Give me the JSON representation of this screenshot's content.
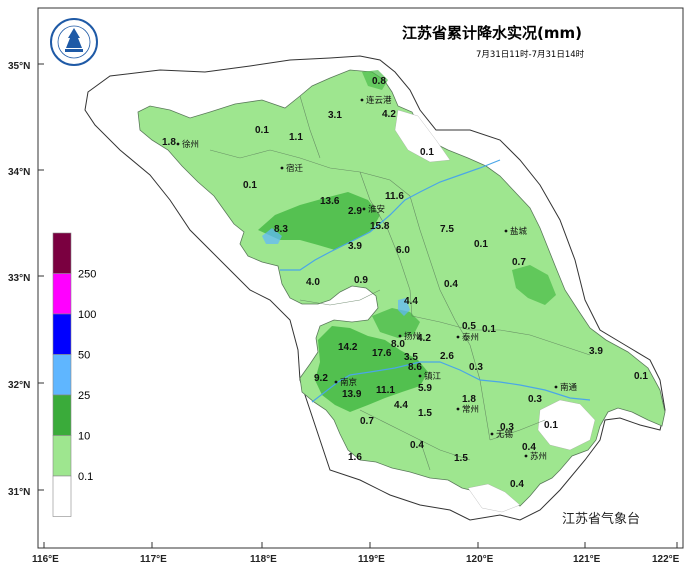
{
  "title": "江苏省累计降水实况(mm)",
  "subtitle": "7月31日11时-7月31日14时",
  "agency": "江苏省气象台",
  "axes": {
    "x_ticks": [
      "116°E",
      "117°E",
      "118°E",
      "119°E",
      "120°E",
      "121°E",
      "122°E"
    ],
    "y_ticks": [
      "35°N",
      "34°N",
      "33°N",
      "32°N",
      "31°N"
    ]
  },
  "legend": {
    "labels": [
      "250",
      "100",
      "50",
      "25",
      "10",
      "0.1"
    ],
    "colors": [
      "#7a0040",
      "#ff00ff",
      "#0000ff",
      "#5fb6ff",
      "#3aab3a",
      "#9ee68f",
      "#ffffff"
    ]
  },
  "colors": {
    "light_green": "#9ee68f",
    "mid_green": "#4cbd4a",
    "river": "#4aa6e8",
    "boundary": "#5a7a5a"
  },
  "cities": [
    {
      "name": "连云港"
    },
    {
      "name": "徐州"
    },
    {
      "name": "宿迁"
    },
    {
      "name": "淮安"
    },
    {
      "name": "盐城"
    },
    {
      "name": "扬州"
    },
    {
      "name": "泰州"
    },
    {
      "name": "南京"
    },
    {
      "name": "镇江"
    },
    {
      "name": "常州"
    },
    {
      "name": "南通"
    },
    {
      "name": "无锡"
    },
    {
      "name": "苏州"
    }
  ],
  "values": [
    "0.8",
    "3.1",
    "4.2",
    "0.1",
    "1.1",
    "1.8",
    "0.1",
    "0.1",
    "11.6",
    "13.6",
    "2.9",
    "15.8",
    "8.3",
    "3.9",
    "6.0",
    "7.5",
    "0.1",
    "0.7",
    "4.0",
    "0.9",
    "4.4",
    "0.4",
    "0.5",
    "0.1",
    "14.2",
    "17.6",
    "8.0",
    "4.2",
    "3.5",
    "2.6",
    "3.9",
    "9.2",
    "8.6",
    "13.9",
    "11.1",
    "5.9",
    "0.3",
    "0.1",
    "1.8",
    "4.4",
    "1.5",
    "0.3",
    "0.7",
    "0.3",
    "0.1",
    "0.4",
    "0.4",
    "1.6",
    "1.5",
    "0.4"
  ]
}
